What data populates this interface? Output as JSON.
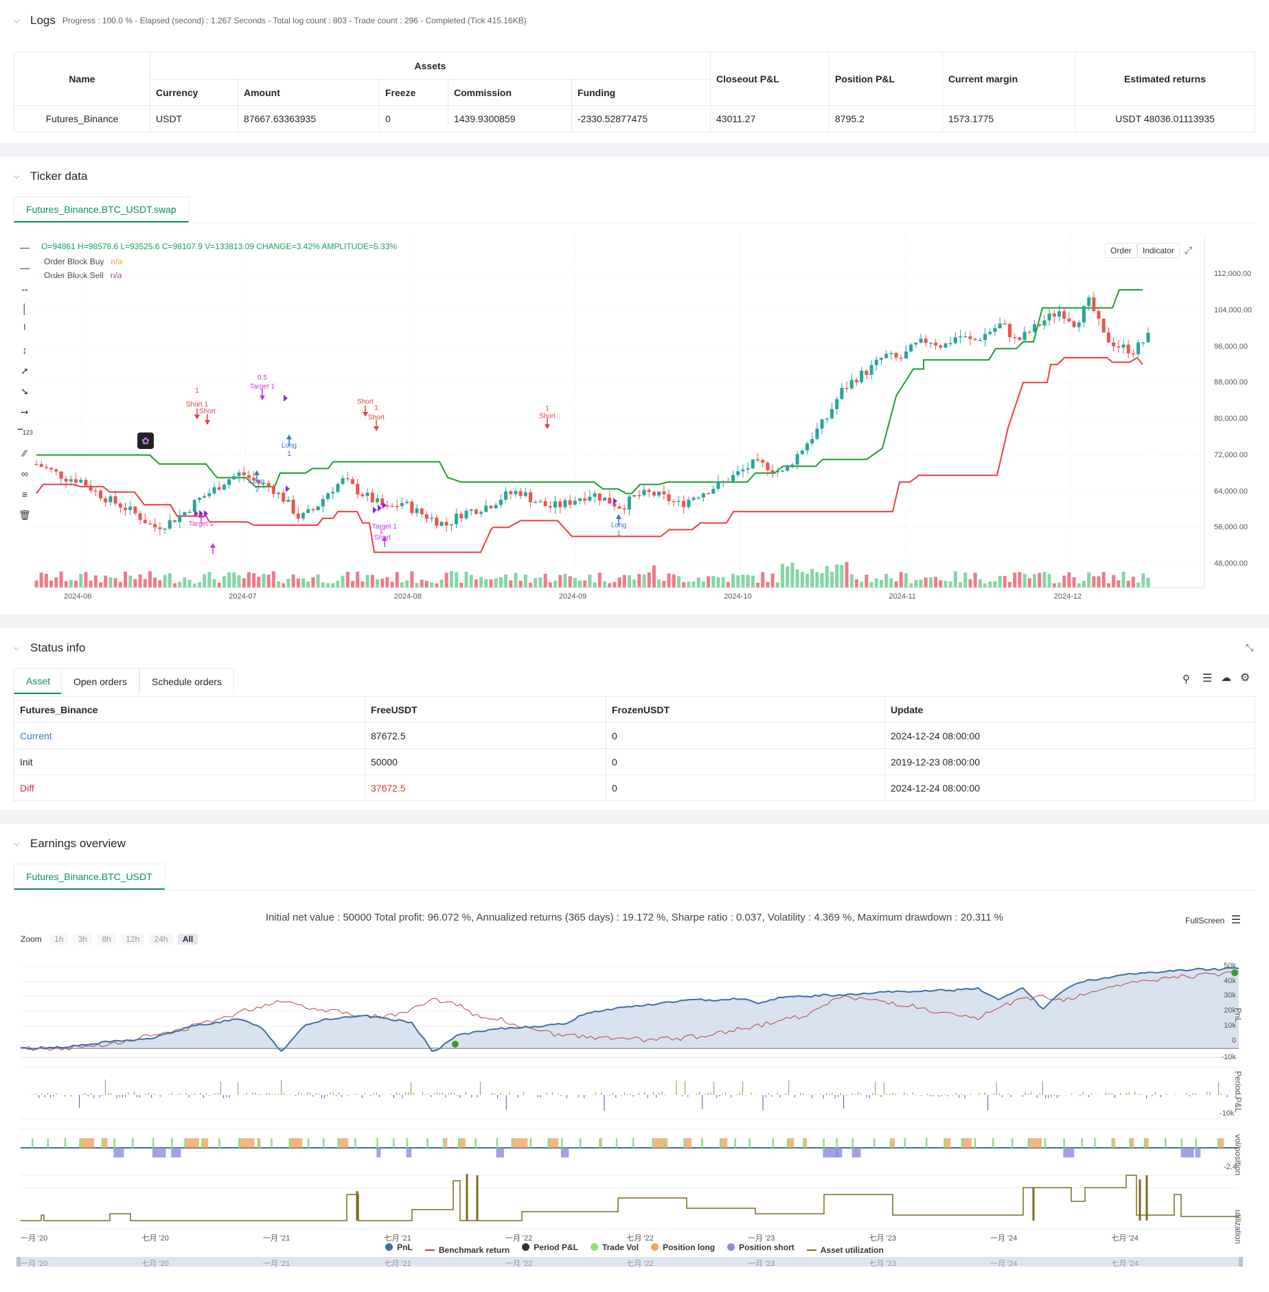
{
  "logs": {
    "title": "Logs",
    "summary": "Progress : 100.0 % - Elapsed (second) : 1.267  Seconds - Total log count : 803 - Trade count : 296 - Completed (Tick 415.16KB)",
    "group_header": "Assets",
    "headers": {
      "name": "Name",
      "currency": "Currency",
      "amount": "Amount",
      "freeze": "Freeze",
      "commission": "Commission",
      "funding": "Funding",
      "closeout": "Closeout P&L",
      "position": "Position P&L",
      "margin": "Current margin",
      "returns": "Estimated returns"
    },
    "row": {
      "name": "Futures_Binance",
      "currency": "USDT",
      "amount": "87667.63363935",
      "freeze": "0",
      "commission": "1439.9300859",
      "funding": "-2330.52877475",
      "closeout": "43011.27",
      "position": "8795.2",
      "margin": "1573.1775",
      "returns": "USDT 48036.01113935"
    }
  },
  "ticker": {
    "title": "Ticker data",
    "tab": "Futures_Binance.BTC_USDT.swap",
    "ohlc": "O=94861  H=98578.6  L=93525.6  C=98107.9  V=133813.09  CHANGE=3.42%  AMPLITUDE=5.33%",
    "legend": [
      {
        "name": "Order Block Buy",
        "value": "n/a",
        "color": "#e6a23c"
      },
      {
        "name": "Order Block Sell",
        "value": "n/a",
        "color": "#8e44ad"
      }
    ],
    "buttons": {
      "order": "Order",
      "indicator": "Indicator"
    },
    "y_ticks": [
      "112,000.00",
      "104,000.00",
      "96,000.00",
      "88,000.00",
      "80,000.00",
      "72,000.00",
      "64,000.00",
      "56,000.00",
      "48,000.00"
    ],
    "x_ticks": [
      "2024-06",
      "2024-07",
      "2024-08",
      "2024-09",
      "2024-10",
      "2024-11",
      "2024-12"
    ],
    "markers": [
      {
        "text": "0.5"
      },
      {
        "text": "Target 1"
      },
      {
        "text": "1"
      },
      {
        "text": "Short 1"
      },
      {
        "text": "Short"
      },
      {
        "text": "Long"
      },
      {
        "text": "1"
      },
      {
        "text": "Long"
      },
      {
        "text": "1"
      },
      {
        "text": "Short"
      },
      {
        "text": "1"
      },
      {
        "text": "Short"
      },
      {
        "text": "1"
      },
      {
        "text": "Short"
      },
      {
        "text": "Target 1"
      },
      {
        "text": "Target 1"
      },
      {
        "text": "1"
      },
      {
        "text": "Short"
      },
      {
        "text": "Long"
      },
      {
        "text": "1"
      }
    ],
    "colors": {
      "up": "#26a69a",
      "down": "#ef5350",
      "buy_line": "#1a9e2e",
      "sell_line": "#ee3b3b",
      "marker_purple": "#c03ae0",
      "marker_blue": "#3d6fd6"
    }
  },
  "status": {
    "title": "Status info",
    "tabs": [
      "Asset",
      "Open orders",
      "Schedule orders"
    ],
    "headers": [
      "Futures_Binance",
      "FreeUSDT",
      "FrozenUSDT",
      "Update"
    ],
    "rows": [
      {
        "label": "Current",
        "free": "87672.5",
        "frozen": "0",
        "update": "2024-12-24 08:00:00",
        "color": "#2f7dd1"
      },
      {
        "label": "Init",
        "free": "50000",
        "frozen": "0",
        "update": "2019-12-23 08:00:00",
        "color": "#1f2329"
      },
      {
        "label": "Diff",
        "free": "37672.5",
        "frozen": "0",
        "update": "2024-12-24 08:00:00",
        "color": "#e03131"
      }
    ]
  },
  "earnings": {
    "title": "Earnings overview",
    "tab": "Futures_Binance.BTC_USDT",
    "summary": "Initial net value : 50000  Total profit: 96.072 %, Annualized returns (365 days) : 19.172 %, Sharpe ratio : 0.037, Volatility : 4.369 %, Maximum drawdown : 20.311 %",
    "fullscreen": "FullScreen",
    "zoom_label": "Zoom",
    "zoom": [
      "1h",
      "3h",
      "8h",
      "12h",
      "24h",
      "All"
    ],
    "pnl_ticks": [
      "50k",
      "40k",
      "30k",
      "20k",
      "10k",
      "0",
      "-10k"
    ],
    "period_tick": "-10k",
    "vol_tick": "-2.4",
    "axis_titles": [
      "PnL",
      "Period P&L",
      "vol/position",
      "utilization"
    ],
    "x_ticks": [
      "一月 '20",
      "七月 '20",
      "一月 '21",
      "七月 '21",
      "一月 '22",
      "七月 '22",
      "一月 '23",
      "七月 '23",
      "一月 '24",
      "七月 '24"
    ],
    "legend": [
      {
        "name": "PnL",
        "color": "#3e6da6"
      },
      {
        "name": "Benchmark return",
        "color": "#b5403d"
      },
      {
        "name": "Period P&L",
        "color": "#333333"
      },
      {
        "name": "Trade Vol",
        "color": "#8fe07b"
      },
      {
        "name": "Position long",
        "color": "#f4a35e"
      },
      {
        "name": "Position short",
        "color": "#8b8ce0"
      },
      {
        "name": "Asset utilization",
        "color": "#7a6a1f"
      }
    ]
  }
}
